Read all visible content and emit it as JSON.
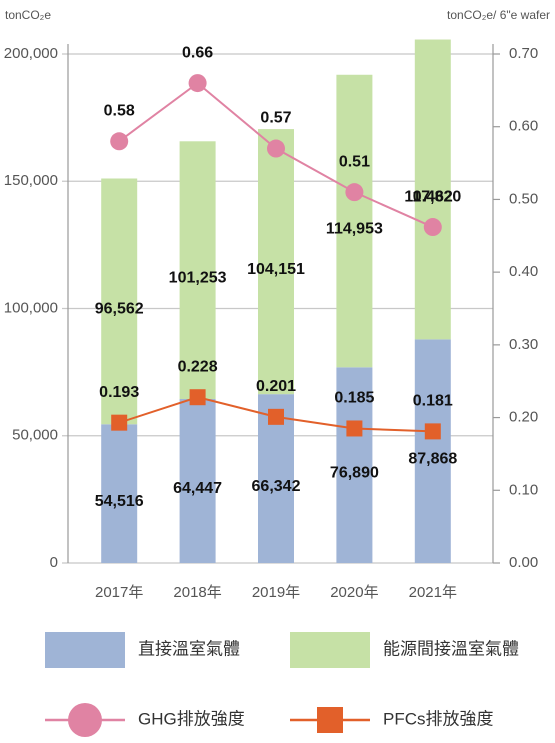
{
  "chart_data": {
    "type": "bar",
    "stacked": true,
    "y_label": "tonCO₂e",
    "y2_label": "tonCO₂e/ 6\"e wafer",
    "categories": [
      "2017年",
      "2018年",
      "2019年",
      "2020年",
      "2021年"
    ],
    "series": [
      {
        "name": "直接溫室氣體",
        "type": "bar",
        "color": "#9fb4d6",
        "values": [
          54516,
          64447,
          66342,
          76890,
          87868
        ],
        "value_labels": [
          "54,516",
          "64,447",
          "66,342",
          "76,890",
          "87,868"
        ]
      },
      {
        "name": "能源間接溫室氣體",
        "type": "bar",
        "color": "#c6e1a6",
        "values": [
          96562,
          101253,
          104151,
          114953,
          117820
        ],
        "value_labels": [
          "96,562",
          "101,253",
          "104,151",
          "114,953",
          "117,820"
        ]
      },
      {
        "name": "GHG排放強度",
        "type": "line",
        "axis": "y2",
        "marker": "circle",
        "color": "#e083a3",
        "values": [
          0.58,
          0.66,
          0.57,
          0.51,
          0.462
        ]
      },
      {
        "name": "PFCs排放強度",
        "type": "line",
        "axis": "y2",
        "marker": "square",
        "color": "#e2602a",
        "values": [
          0.193,
          0.228,
          0.201,
          0.185,
          0.181
        ]
      }
    ],
    "ylim": [
      0,
      200000
    ],
    "yticks": [
      0,
      {
        "value": 50000,
        "label": "50,000"
      },
      {
        "value": 100000,
        "label": "100,000"
      },
      {
        "value": 150000,
        "label": "150,000"
      },
      {
        "value": 200000,
        "label": "200,000"
      }
    ],
    "y2lim": [
      0,
      0.7
    ],
    "y2ticks": [
      {
        "value": 0,
        "label": "0.00"
      },
      {
        "value": 0.1,
        "label": "0.10"
      },
      {
        "value": 0.2,
        "label": "0.20"
      },
      {
        "value": 0.3,
        "label": "0.30"
      },
      {
        "value": 0.4,
        "label": "0.40"
      },
      {
        "value": 0.5,
        "label": "0.50"
      },
      {
        "value": 0.6,
        "label": "0.60"
      },
      {
        "value": 0.7,
        "label": "0.70"
      }
    ],
    "grid": true,
    "legend": "bottom"
  }
}
